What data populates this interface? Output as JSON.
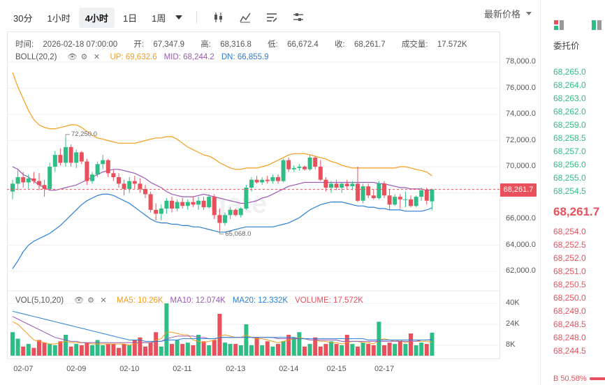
{
  "toolbar": {
    "timeframes": [
      "30分",
      "1小时",
      "4小时",
      "1日",
      "1周"
    ],
    "active_timeframe": "4小时",
    "price_mode": "最新价格"
  },
  "info": {
    "time_label": "时间:",
    "time": "2026-02-18 07:00:00",
    "open_label": "开:",
    "open": "67,347.9",
    "high_label": "高:",
    "high": "68,316.8",
    "low_label": "低:",
    "low": "66,672.4",
    "close_label": "收:",
    "close": "68,261.7",
    "volume_label": "成交量:",
    "volume": "17.572K"
  },
  "boll": {
    "name": "BOLL(20,2)",
    "up": "UP: 69,632.6",
    "mid": "MID: 68,244.2",
    "dn": "DN: 66,855.9"
  },
  "vol": {
    "name": "VOL(5,10,20)",
    "ma5": "MA5: 10.26K",
    "ma10": "MA10: 12.074K",
    "ma20": "MA20: 12.332K",
    "volume": "VOLUME: 17.572K"
  },
  "colors": {
    "up": "#2ebd85",
    "down": "#e8505b",
    "boll_up": "#f59c1a",
    "boll_mid": "#9b59b6",
    "boll_dn": "#2a7fd4",
    "ma5": "#f59c1a",
    "ma10": "#9b59b6",
    "ma20": "#2a7fd4"
  },
  "chart_data": {
    "type": "candlestick",
    "y_ticks": [
      "78,000.0",
      "76,000.0",
      "74,000.0",
      "72,000.0",
      "70,000.0",
      "68,000.0",
      "66,000.0",
      "64,000.0",
      "62,000.0"
    ],
    "vol_ticks": [
      "40K",
      "24K",
      "8K"
    ],
    "x_ticks": [
      "02-07",
      "02-09",
      "02-10",
      "02-11",
      "02-13",
      "02-14",
      "02-15",
      "02-17"
    ],
    "last_price": "68,261.7",
    "high_annotation": "72,250.0",
    "low_annotation": "65,068.0",
    "ylim": [
      61000,
      79000
    ],
    "candles": [
      [
        68100,
        69000,
        67500,
        68700
      ],
      [
        68700,
        69800,
        68200,
        69200
      ],
      [
        69200,
        69600,
        68400,
        68800
      ],
      [
        68800,
        69400,
        68300,
        69100
      ],
      [
        69100,
        69600,
        68700,
        68900
      ],
      [
        68900,
        69500,
        68200,
        68600
      ],
      [
        68600,
        69000,
        67700,
        68300
      ],
      [
        68300,
        70300,
        68200,
        70000
      ],
      [
        70000,
        71200,
        69600,
        70900
      ],
      [
        70900,
        71400,
        70100,
        70300
      ],
      [
        70300,
        72250,
        70000,
        71500
      ],
      [
        71500,
        71700,
        70000,
        70300
      ],
      [
        70300,
        71300,
        69900,
        71100
      ],
      [
        71100,
        71200,
        70200,
        70400
      ],
      [
        70400,
        70600,
        68600,
        68900
      ],
      [
        68900,
        69600,
        68700,
        69400
      ],
      [
        69400,
        70400,
        69200,
        70200
      ],
      [
        70200,
        70900,
        69800,
        70500
      ],
      [
        70500,
        70600,
        69200,
        69500
      ],
      [
        69500,
        69800,
        68900,
        69200
      ],
      [
        69200,
        69500,
        68400,
        68700
      ],
      [
        68700,
        69000,
        67800,
        68300
      ],
      [
        68300,
        69200,
        68000,
        68900
      ],
      [
        68900,
        69300,
        68300,
        68700
      ],
      [
        68700,
        69100,
        68000,
        68300
      ],
      [
        68300,
        68600,
        67600,
        67900
      ],
      [
        67900,
        68100,
        66500,
        66700
      ],
      [
        66700,
        67200,
        65900,
        66400
      ],
      [
        66400,
        67100,
        65900,
        66800
      ],
      [
        66800,
        67600,
        66400,
        67400
      ],
      [
        67400,
        67700,
        66500,
        66800
      ],
      [
        66800,
        67500,
        66600,
        67300
      ],
      [
        67300,
        67600,
        66800,
        67000
      ],
      [
        67000,
        67500,
        66700,
        67300
      ],
      [
        67300,
        67700,
        66900,
        67100
      ],
      [
        67100,
        67700,
        66700,
        67400
      ],
      [
        67400,
        67700,
        66700,
        66900
      ],
      [
        66900,
        67900,
        66800,
        67700
      ],
      [
        67700,
        67900,
        66000,
        66300
      ],
      [
        66300,
        66800,
        65068,
        65700
      ],
      [
        65700,
        66500,
        65500,
        66300
      ],
      [
        66300,
        66900,
        66000,
        66700
      ],
      [
        66700,
        66800,
        66200,
        66300
      ],
      [
        66300,
        66900,
        66100,
        66800
      ],
      [
        66800,
        68600,
        66700,
        68400
      ],
      [
        68400,
        69200,
        68100,
        69000
      ],
      [
        69000,
        69300,
        68700,
        68800
      ],
      [
        68800,
        69200,
        68600,
        69000
      ],
      [
        69000,
        69300,
        68700,
        68900
      ],
      [
        68900,
        69400,
        68700,
        69200
      ],
      [
        69200,
        69400,
        68700,
        68900
      ],
      [
        68900,
        70600,
        68800,
        70500
      ],
      [
        70500,
        70700,
        69600,
        69800
      ],
      [
        69800,
        70100,
        69600,
        69900
      ],
      [
        69900,
        70200,
        69700,
        70000
      ],
      [
        70000,
        70100,
        69700,
        69800
      ],
      [
        69800,
        70900,
        69700,
        70700
      ],
      [
        70700,
        70800,
        69800,
        70000
      ],
      [
        70000,
        70500,
        68900,
        69000
      ],
      [
        69000,
        69200,
        68100,
        68400
      ],
      [
        68400,
        68900,
        68000,
        68700
      ],
      [
        68700,
        69000,
        68200,
        68400
      ],
      [
        68400,
        68800,
        68000,
        68700
      ],
      [
        68700,
        69000,
        68300,
        68500
      ],
      [
        68500,
        68900,
        68200,
        68700
      ],
      [
        68700,
        70000,
        67300,
        67400
      ],
      [
        67400,
        68700,
        67200,
        68500
      ],
      [
        68500,
        68700,
        67600,
        67800
      ],
      [
        67800,
        68300,
        67500,
        67600
      ],
      [
        67600,
        68900,
        67500,
        68700
      ],
      [
        68700,
        68900,
        67600,
        67800
      ],
      [
        67800,
        68300,
        66700,
        67100
      ],
      [
        67100,
        67900,
        67000,
        67700
      ],
      [
        67700,
        67900,
        66800,
        67500
      ],
      [
        67500,
        68100,
        66900,
        67500
      ],
      [
        67500,
        67800,
        66900,
        67000
      ],
      [
        67000,
        67800,
        66900,
        67700
      ],
      [
        67700,
        68400,
        67400,
        68200
      ],
      [
        68200,
        68400,
        67100,
        67400
      ],
      [
        67347.9,
        68316.8,
        66672.4,
        68261.7
      ]
    ],
    "volumes": [
      18,
      13,
      7,
      9,
      6,
      12,
      10,
      9,
      8,
      11,
      16,
      7,
      9,
      8,
      10,
      8,
      12,
      8,
      9,
      9,
      6,
      9,
      8,
      12,
      14,
      7,
      10,
      18,
      7,
      40,
      9,
      12,
      9,
      10,
      8,
      16,
      11,
      8,
      12,
      32,
      10,
      9,
      9,
      8,
      24,
      8,
      14,
      8,
      11,
      7,
      9,
      11,
      16,
      14,
      18,
      7,
      9,
      14,
      7,
      9,
      11,
      9,
      8,
      16,
      9,
      7,
      10,
      9,
      8,
      26,
      8,
      10,
      9,
      11,
      9,
      17,
      8,
      10,
      9,
      17.572
    ],
    "boll_up": [
      77200,
      76100,
      75200,
      74300,
      73600,
      73200,
      73000,
      72900,
      72900,
      73000,
      73100,
      73200,
      73200,
      73000,
      72700,
      72400,
      72200,
      72100,
      72000,
      71900,
      71800,
      71800,
      71800,
      71800,
      71900,
      72000,
      72100,
      72200,
      72200,
      72300,
      72300,
      72100,
      71800,
      71500,
      71300,
      71100,
      70900,
      70800,
      70600,
      70300,
      70100,
      69900,
      69800,
      69800,
      69900,
      69900,
      69900,
      70000,
      70100,
      70300,
      70500,
      70700,
      70900,
      71000,
      71000,
      71000,
      70900,
      70800,
      70700,
      70600,
      70400,
      70300,
      70100,
      70000,
      69900,
      69900,
      69900,
      69900,
      69900,
      69900,
      69900,
      69900,
      69900,
      70000,
      70000,
      69900,
      69800,
      69700,
      69600,
      69300
    ],
    "boll_mid": [
      70000,
      69800,
      69400,
      69200,
      68900,
      68600,
      68400,
      68200,
      68200,
      68300,
      68400,
      68500,
      68600,
      68800,
      69000,
      69200,
      69400,
      69600,
      69700,
      69800,
      69800,
      69700,
      69600,
      69500,
      69300,
      69100,
      68800,
      68600,
      68400,
      68100,
      67900,
      67800,
      67700,
      67700,
      67700,
      67800,
      67900,
      67800,
      67700,
      67600,
      67500,
      67400,
      67300,
      67200,
      67200,
      67300,
      67400,
      67600,
      67700,
      67900,
      68100,
      68300,
      68500,
      68600,
      68700,
      68800,
      68800,
      68800,
      68800,
      68800,
      68800,
      68800,
      68800,
      68800,
      68800,
      68800,
      68800,
      68800,
      68800,
      68700,
      68700,
      68600,
      68500,
      68400,
      68400,
      68300,
      68300,
      68300,
      68200,
      68244.2
    ],
    "boll_dn": [
      62200,
      62800,
      63500,
      64000,
      64300,
      64500,
      64700,
      64900,
      65200,
      65500,
      65900,
      66300,
      66700,
      67100,
      67400,
      67600,
      67800,
      67900,
      67900,
      67800,
      67600,
      67400,
      67200,
      66900,
      66600,
      66300,
      66000,
      65800,
      65700,
      65700,
      65600,
      65600,
      65500,
      65500,
      65400,
      65400,
      65300,
      65200,
      65100,
      65000,
      65000,
      65100,
      65200,
      65300,
      65400,
      65400,
      65400,
      65400,
      65400,
      65400,
      65500,
      65600,
      65700,
      65900,
      66100,
      66400,
      66700,
      66900,
      67100,
      67200,
      67300,
      67300,
      67300,
      67200,
      67100,
      67000,
      67000,
      66900,
      66900,
      66800,
      66800,
      66700,
      66700,
      66700,
      66600,
      66600,
      66600,
      66600,
      66700,
      66855.9
    ],
    "ma5": [
      26,
      24,
      20,
      16,
      12,
      11,
      10,
      9,
      9,
      10,
      11,
      10,
      10,
      10,
      10,
      9,
      9,
      9,
      9,
      9,
      9,
      9,
      8,
      9,
      10,
      10,
      10,
      12,
      13,
      18,
      18,
      17,
      16,
      16,
      12,
      11,
      10,
      11,
      12,
      15,
      16,
      15,
      14,
      14,
      16,
      14,
      13,
      13,
      12,
      11,
      10,
      11,
      12,
      13,
      14,
      13,
      12,
      12,
      11,
      11,
      10,
      10,
      9,
      10,
      11,
      11,
      10,
      10,
      9,
      12,
      13,
      12,
      11,
      12,
      10,
      11,
      11,
      11,
      11,
      10.26
    ],
    "ma10": [
      30,
      28,
      26,
      24,
      22,
      20,
      18,
      16,
      14,
      13,
      12,
      11,
      11,
      10,
      10,
      10,
      10,
      10,
      10,
      10,
      10,
      10,
      10,
      10,
      10,
      10,
      10,
      11,
      11,
      13,
      14,
      15,
      15,
      15,
      15,
      14,
      14,
      13,
      13,
      14,
      14,
      14,
      14,
      14,
      14,
      14,
      14,
      14,
      14,
      14,
      13,
      13,
      13,
      13,
      13,
      13,
      12,
      12,
      12,
      12,
      12,
      12,
      11,
      11,
      11,
      11,
      11,
      11,
      11,
      11,
      11,
      11,
      11,
      11,
      11,
      11,
      11,
      12,
      12,
      12.074
    ],
    "ma20": [
      34,
      33,
      32,
      31,
      30,
      29,
      28,
      27,
      26,
      25,
      24,
      23,
      22,
      21,
      20,
      19,
      18,
      17,
      16,
      15,
      14,
      13,
      12,
      12,
      12,
      11,
      11,
      11,
      11,
      12,
      12,
      12,
      13,
      13,
      13,
      13,
      13,
      13,
      13,
      14,
      14,
      14,
      14,
      14,
      14,
      14,
      14,
      14,
      14,
      14,
      14,
      14,
      14,
      14,
      13,
      13,
      13,
      13,
      13,
      13,
      13,
      13,
      13,
      13,
      13,
      13,
      13,
      12,
      12,
      12,
      12,
      12,
      12,
      12,
      12,
      12,
      12,
      12,
      12,
      12.332
    ]
  },
  "book": {
    "title": "委托价",
    "asks": [
      "68,265.0",
      "68,264.0",
      "68,263.0",
      "68,262.0",
      "68,259.0",
      "68,258.5",
      "68,257.0",
      "68,256.0",
      "68,255.0",
      "68,254.5"
    ],
    "last": "68,261.7",
    "bids": [
      "68,254.0",
      "68,252.5",
      "68,252.0",
      "68,251.0",
      "68,250.5",
      "68,250.0",
      "68,249.0",
      "68,248.5",
      "68,248.0",
      "68,244.5"
    ],
    "ratio": "B 50.58%"
  }
}
